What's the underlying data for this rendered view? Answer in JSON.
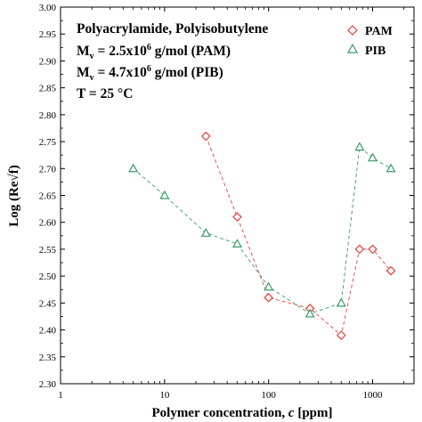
{
  "chart_data": {
    "type": "scatter",
    "xlabel_main": "Polymer concentration, ",
    "xlabel_var": "c",
    "xlabel_unit": " [ppm]",
    "ylabel": "Log (Re√f)",
    "xscale": "log",
    "xlim": [
      1,
      2500
    ],
    "ylim": [
      2.3,
      3.0
    ],
    "yticks": [
      "2.30",
      "2.35",
      "2.40",
      "2.45",
      "2.50",
      "2.55",
      "2.60",
      "2.65",
      "2.70",
      "2.75",
      "2.80",
      "2.85",
      "2.90",
      "2.95",
      "3.00"
    ],
    "xticks": [
      {
        "value": 1,
        "label": "1"
      },
      {
        "value": 10,
        "label": "10"
      },
      {
        "value": 100,
        "label": "100"
      },
      {
        "value": 1000,
        "label": "1000"
      }
    ],
    "grid": false,
    "legend_position": "top-right",
    "annotations": {
      "line1": "Polyacrylamide, Polyisobutylene",
      "line2_pre": "M",
      "line2_sub": "v",
      "line2_mid": " = 2.5x10",
      "line2_sup": "6",
      "line2_post": " g/mol (PAM)",
      "line3_pre": "M",
      "line3_sub": "v",
      "line3_mid": " = 4.7x10",
      "line3_sup": "6",
      "line3_post": " g/mol (PIB)",
      "line4": "T = 25 °C"
    },
    "series": [
      {
        "name": "PAM",
        "marker": "diamond",
        "color": "#e8403a",
        "x": [
          25,
          50,
          100,
          250,
          500,
          750,
          1000,
          1500
        ],
        "y": [
          2.76,
          2.61,
          2.46,
          2.44,
          2.39,
          2.55,
          2.55,
          2.51
        ]
      },
      {
        "name": "PIB",
        "marker": "triangle",
        "color": "#3a9a6a",
        "x": [
          5,
          10,
          25,
          50,
          100,
          250,
          500,
          750,
          1000,
          1500
        ],
        "y": [
          2.7,
          2.65,
          2.58,
          2.56,
          2.48,
          2.43,
          2.45,
          2.74,
          2.72,
          2.7
        ]
      }
    ]
  }
}
